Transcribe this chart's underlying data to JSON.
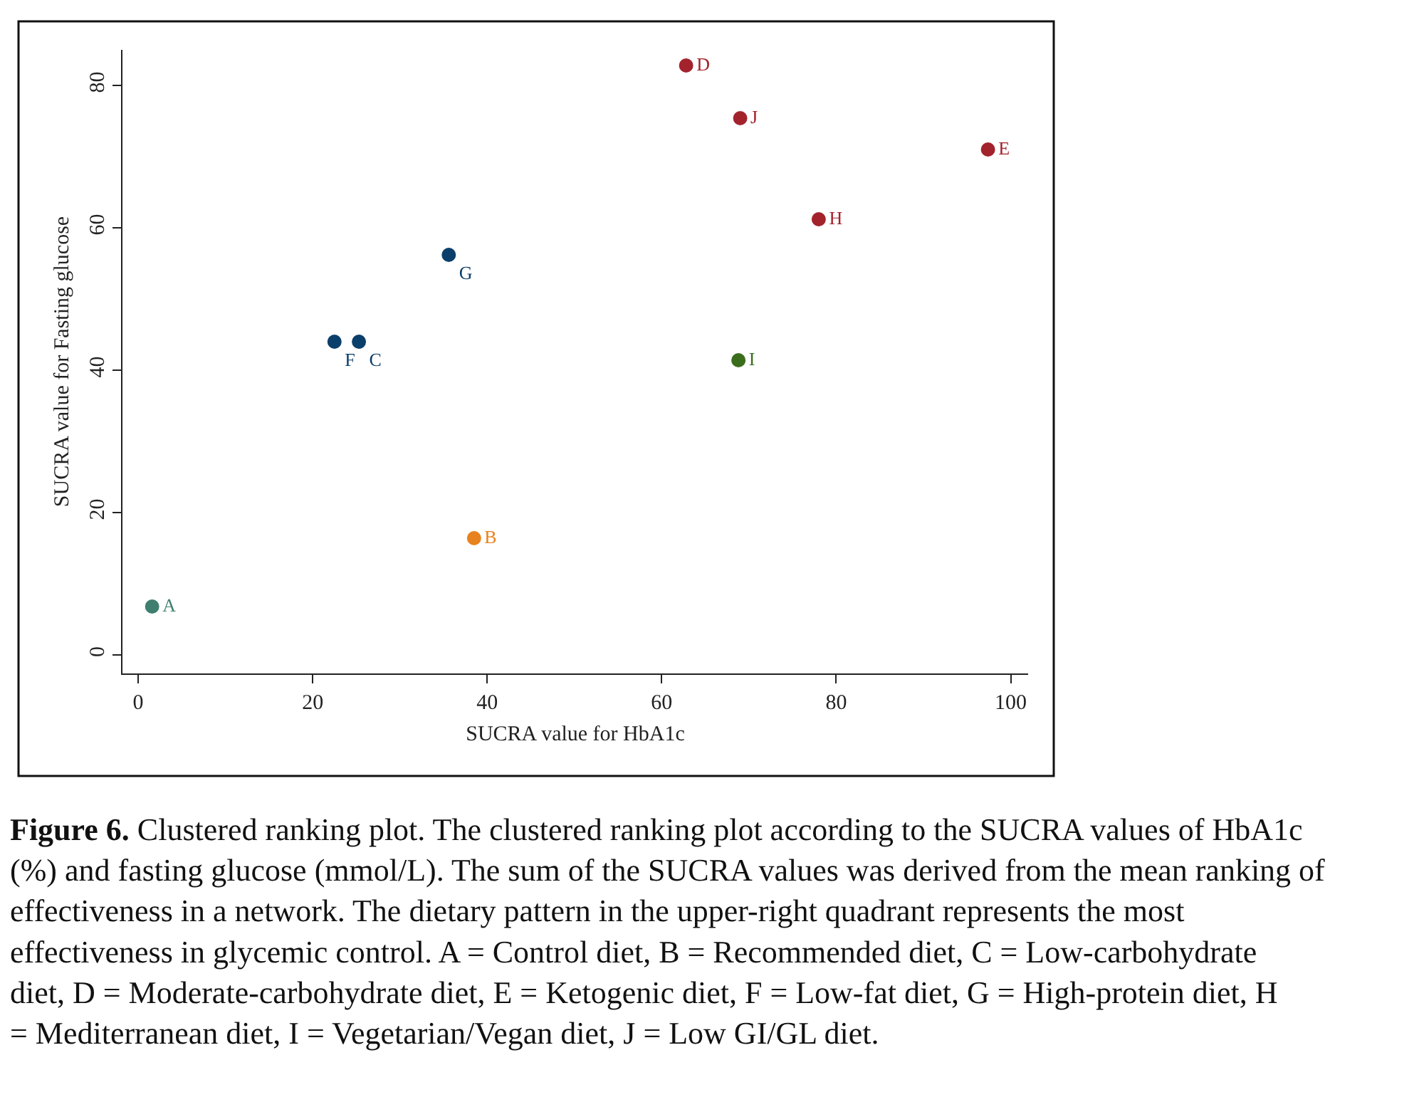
{
  "chart_data": {
    "type": "scatter",
    "xlabel": "SUCRA value for HbA1c",
    "ylabel": "SUCRA value for Fasting glucose",
    "xlim": [
      -1.8,
      102
    ],
    "ylim": [
      -2.6,
      85
    ],
    "xticks": [
      0,
      20,
      40,
      60,
      80,
      100
    ],
    "yticks": [
      0,
      20,
      40,
      60,
      80
    ],
    "grid": false,
    "legend": false,
    "marker": "circle",
    "series": [
      {
        "name": "A",
        "color": "#3f7f6f",
        "x": [
          1.6
        ],
        "values": [
          6.8
        ]
      },
      {
        "name": "B",
        "color": "#e8821e",
        "x": [
          38.5
        ],
        "values": [
          16.4
        ]
      },
      {
        "name": "C",
        "color": "#0b3f6b",
        "x": [
          25.3
        ],
        "values": [
          44.0
        ]
      },
      {
        "name": "D",
        "color": "#a3232d",
        "x": [
          62.8
        ],
        "values": [
          82.8
        ]
      },
      {
        "name": "E",
        "color": "#a3232d",
        "x": [
          97.4
        ],
        "values": [
          71.0
        ]
      },
      {
        "name": "F",
        "color": "#0b3f6b",
        "x": [
          22.5
        ],
        "values": [
          44.0
        ]
      },
      {
        "name": "G",
        "color": "#0b3f6b",
        "x": [
          35.6
        ],
        "values": [
          56.2
        ]
      },
      {
        "name": "H",
        "color": "#a3232d",
        "x": [
          78.0
        ],
        "values": [
          61.2
        ]
      },
      {
        "name": "I",
        "color": "#3a6e1c",
        "x": [
          68.8
        ],
        "values": [
          41.4
        ]
      },
      {
        "name": "J",
        "color": "#a3232d",
        "x": [
          69.0
        ],
        "values": [
          75.4
        ]
      }
    ],
    "annotations": [
      "Figure 6. Clustered ranking plot. The clustered ranking plot according to the SUCRA values of HbA1c (%) and fasting glucose (mmol/L). The sum of the SUCRA values was derived from the mean ranking of effectiveness in a network. The dietary pattern in the upper-right quadrant represents the most effectiveness in glycemic control. A = Control diet, B = Recommended diet, C = Low-carbohydrate diet, D = Moderate-carbohydrate diet, E = Ketogenic diet, F = Low-fat diet, G = High-protein diet, H = Mediterranean diet, I = Vegetarian/Vegan diet, J = Low GI/GL diet."
    ]
  }
}
